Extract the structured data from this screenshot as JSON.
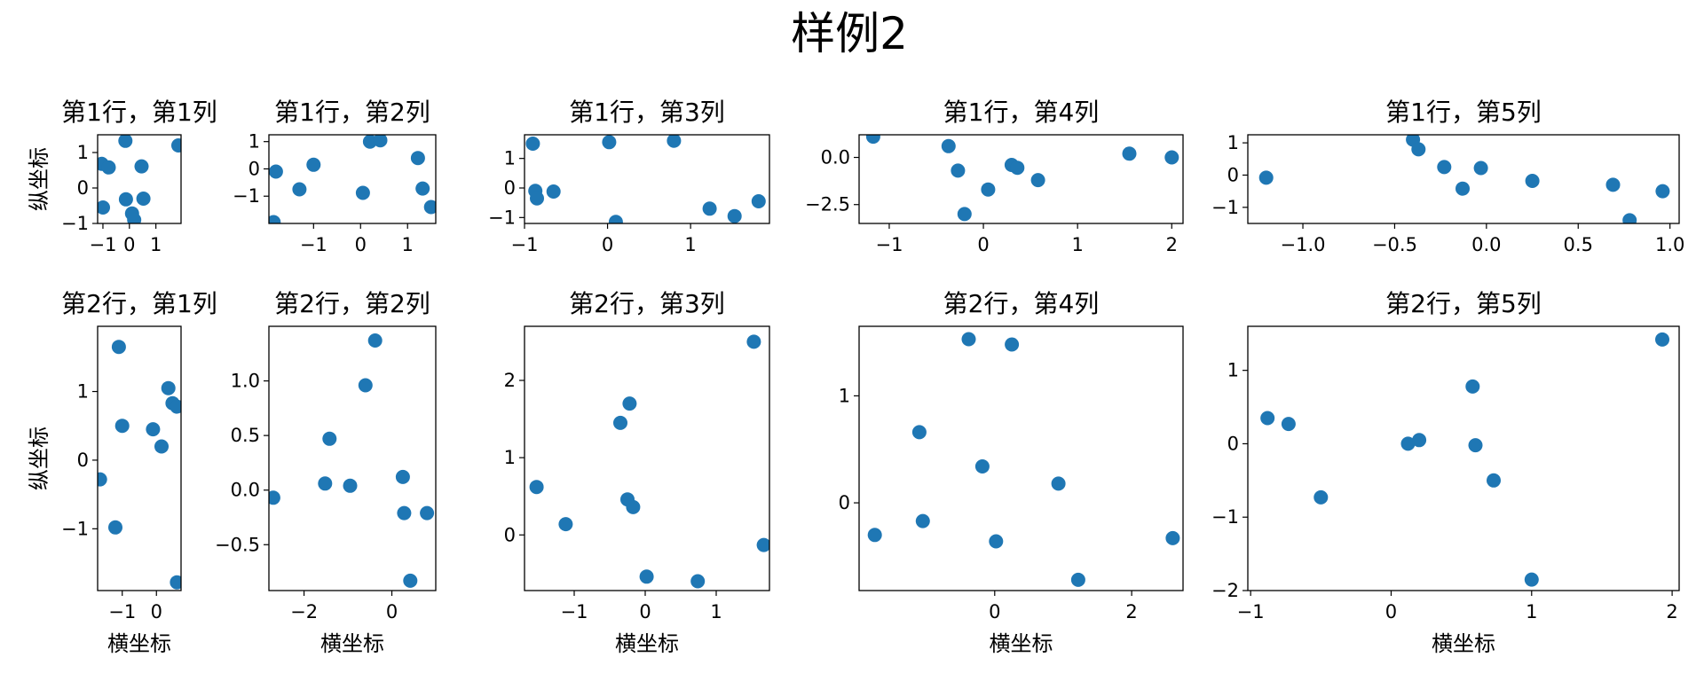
{
  "figure": {
    "title": "样例2"
  },
  "style": {
    "point_color": "#1f77b4",
    "axes_color": "#000000",
    "background": "#ffffff"
  },
  "chart_data": [
    {
      "type": "scatter",
      "row": 1,
      "col": 1,
      "title": "第1行，第1列",
      "xlabel": "",
      "ylabel": "纵坐标",
      "xlim": [
        -1.2,
        1.95
      ],
      "ylim": [
        -1.0,
        1.5
      ],
      "xticks": [
        -1,
        0,
        1
      ],
      "yticks": [
        -1,
        0,
        1
      ],
      "xtick_labels": [
        "−1",
        "0",
        "1"
      ],
      "ytick_labels": [
        "−1",
        "0",
        "1"
      ],
      "x": [
        -1.05,
        -0.78,
        -0.15,
        -0.13,
        0.1,
        0.18,
        0.46,
        0.53,
        1.85,
        -1.0
      ],
      "y": [
        0.68,
        0.58,
        1.33,
        -0.32,
        -0.72,
        -0.9,
        0.61,
        -0.3,
        1.2,
        -0.55
      ]
    },
    {
      "type": "scatter",
      "row": 1,
      "col": 2,
      "title": "第1行，第2列",
      "xlabel": "",
      "ylabel": "",
      "xlim": [
        -1.95,
        1.6
      ],
      "ylim": [
        -2.0,
        1.25
      ],
      "xticks": [
        -1,
        0,
        1
      ],
      "yticks": [
        -1,
        0,
        1
      ],
      "xtick_labels": [
        "−1",
        "0",
        "1"
      ],
      "ytick_labels": [
        "−1",
        "0",
        "1"
      ],
      "x": [
        -1.8,
        -1.3,
        -1.0,
        0.05,
        0.2,
        0.42,
        1.22,
        1.32,
        1.5,
        -1.85
      ],
      "y": [
        -0.1,
        -0.75,
        0.15,
        -0.88,
        1.0,
        1.05,
        0.4,
        -0.72,
        -1.4,
        -1.95
      ]
    },
    {
      "type": "scatter",
      "row": 1,
      "col": 3,
      "title": "第1行，第3列",
      "xlabel": "",
      "ylabel": "",
      "xlim": [
        -1.0,
        1.95
      ],
      "ylim": [
        -1.2,
        1.8
      ],
      "xticks": [
        -1,
        0,
        1
      ],
      "yticks": [
        -1,
        0,
        1
      ],
      "xtick_labels": [
        "−1",
        "0",
        "1"
      ],
      "ytick_labels": [
        "−1",
        "0",
        "1"
      ],
      "x": [
        -0.9,
        -0.87,
        -0.85,
        -0.65,
        0.02,
        0.1,
        0.8,
        1.23,
        1.53,
        1.82
      ],
      "y": [
        1.5,
        -0.1,
        -0.35,
        -0.12,
        1.55,
        -1.15,
        1.6,
        -0.7,
        -0.95,
        -0.45
      ]
    },
    {
      "type": "scatter",
      "row": 1,
      "col": 4,
      "title": "第1行，第4列",
      "xlabel": "",
      "ylabel": "",
      "xlim": [
        -1.32,
        2.12
      ],
      "ylim": [
        -3.5,
        1.2
      ],
      "xticks": [
        -1,
        0,
        1,
        2
      ],
      "yticks": [
        -2.5,
        0.0
      ],
      "xtick_labels": [
        "−1",
        "0",
        "1",
        "2"
      ],
      "ytick_labels": [
        "−2.5",
        "0.0"
      ],
      "x": [
        -1.17,
        -0.37,
        -0.27,
        -0.2,
        0.05,
        0.3,
        0.36,
        0.58,
        1.55,
        2.0
      ],
      "y": [
        1.1,
        0.6,
        -0.7,
        -3.0,
        -1.7,
        -0.4,
        -0.55,
        -1.2,
        0.2,
        0.0
      ]
    },
    {
      "type": "scatter",
      "row": 1,
      "col": 5,
      "title": "第1行，第5列",
      "xlabel": "",
      "ylabel": "",
      "xlim": [
        -1.3,
        1.05
      ],
      "ylim": [
        -1.5,
        1.25
      ],
      "xticks": [
        -1.0,
        -0.5,
        0.0,
        0.5,
        1.0
      ],
      "yticks": [
        -1,
        0,
        1
      ],
      "xtick_labels": [
        "−1.0",
        "−0.5",
        "0.0",
        "0.5",
        "1.0"
      ],
      "ytick_labels": [
        "−1",
        "0",
        "1"
      ],
      "x": [
        -1.2,
        -0.4,
        -0.37,
        -0.23,
        -0.13,
        -0.03,
        0.25,
        0.69,
        0.78,
        0.96
      ],
      "y": [
        -0.08,
        1.1,
        0.8,
        0.25,
        -0.42,
        0.22,
        -0.18,
        -0.3,
        -1.4,
        -0.5
      ]
    },
    {
      "type": "scatter",
      "row": 2,
      "col": 1,
      "title": "第2行，第1列",
      "xlabel": "横坐标",
      "ylabel": "纵坐标",
      "xlim": [
        -1.72,
        0.72
      ],
      "ylim": [
        -1.9,
        1.95
      ],
      "xticks": [
        -1,
        0
      ],
      "yticks": [
        -1,
        0,
        1
      ],
      "xtick_labels": [
        "−1",
        "0"
      ],
      "ytick_labels": [
        "−1",
        "0",
        "1"
      ],
      "x": [
        -1.65,
        -1.2,
        -1.1,
        -1.0,
        -0.1,
        0.15,
        0.35,
        0.47,
        0.6,
        0.6
      ],
      "y": [
        -0.28,
        -0.98,
        1.65,
        0.5,
        0.45,
        0.2,
        1.05,
        0.83,
        0.78,
        -1.78
      ]
    },
    {
      "type": "scatter",
      "row": 2,
      "col": 2,
      "title": "第2行，第2列",
      "xlabel": "横坐标",
      "ylabel": "",
      "xlim": [
        -2.8,
        1.0
      ],
      "ylim": [
        -0.92,
        1.5
      ],
      "xticks": [
        -2,
        0
      ],
      "yticks": [
        -0.5,
        0.0,
        0.5,
        1.0
      ],
      "xtick_labels": [
        "−2",
        "0"
      ],
      "ytick_labels": [
        "−0.5",
        "0.0",
        "0.5",
        "1.0"
      ],
      "x": [
        -2.7,
        -1.52,
        -1.42,
        -0.95,
        -0.6,
        -0.38,
        0.25,
        0.28,
        0.42,
        0.8
      ],
      "y": [
        -0.07,
        0.06,
        0.47,
        0.04,
        0.96,
        1.37,
        0.12,
        -0.21,
        -0.83,
        -0.21
      ]
    },
    {
      "type": "scatter",
      "row": 2,
      "col": 3,
      "title": "第2行，第3列",
      "xlabel": "横坐标",
      "ylabel": "",
      "xlim": [
        -1.7,
        1.75
      ],
      "ylim": [
        -0.72,
        2.7
      ],
      "xticks": [
        -1,
        0,
        1
      ],
      "yticks": [
        0,
        1,
        2
      ],
      "xtick_labels": [
        "−1",
        "0",
        "1"
      ],
      "ytick_labels": [
        "0",
        "1",
        "2"
      ],
      "x": [
        -1.53,
        -1.12,
        -0.35,
        -0.22,
        -0.25,
        -0.17,
        0.02,
        0.74,
        1.53,
        1.67
      ],
      "y": [
        0.62,
        0.14,
        1.45,
        1.7,
        0.46,
        0.36,
        -0.54,
        -0.6,
        2.5,
        -0.13
      ]
    },
    {
      "type": "scatter",
      "row": 2,
      "col": 4,
      "title": "第2行，第4列",
      "xlabel": "横坐标",
      "ylabel": "",
      "xlim": [
        -1.98,
        2.75
      ],
      "ylim": [
        -0.82,
        1.65
      ],
      "xticks": [
        0,
        2
      ],
      "yticks": [
        0,
        1
      ],
      "xtick_labels": [
        "0",
        "2"
      ],
      "ytick_labels": [
        "0",
        "1"
      ],
      "x": [
        -1.75,
        -1.1,
        -1.05,
        -0.38,
        -0.18,
        0.02,
        0.25,
        0.93,
        1.22,
        2.6
      ],
      "y": [
        -0.3,
        0.66,
        -0.17,
        1.53,
        0.34,
        -0.36,
        1.48,
        0.18,
        -0.72,
        -0.33
      ]
    },
    {
      "type": "scatter",
      "row": 2,
      "col": 5,
      "title": "第2行，第5列",
      "xlabel": "横坐标",
      "ylabel": "",
      "xlim": [
        -1.02,
        2.05
      ],
      "ylim": [
        -2.0,
        1.6
      ],
      "xticks": [
        -1,
        0,
        1,
        2
      ],
      "yticks": [
        -2,
        -1,
        0,
        1
      ],
      "xtick_labels": [
        "−1",
        "0",
        "1",
        "2"
      ],
      "ytick_labels": [
        "−2",
        "−1",
        "0",
        "1"
      ],
      "x": [
        -0.88,
        -0.73,
        -0.5,
        0.12,
        0.2,
        0.58,
        0.6,
        0.73,
        1.0,
        1.93
      ],
      "y": [
        0.35,
        0.27,
        -0.73,
        0.0,
        0.05,
        0.78,
        -0.02,
        -0.5,
        -1.85,
        1.42
      ]
    }
  ]
}
